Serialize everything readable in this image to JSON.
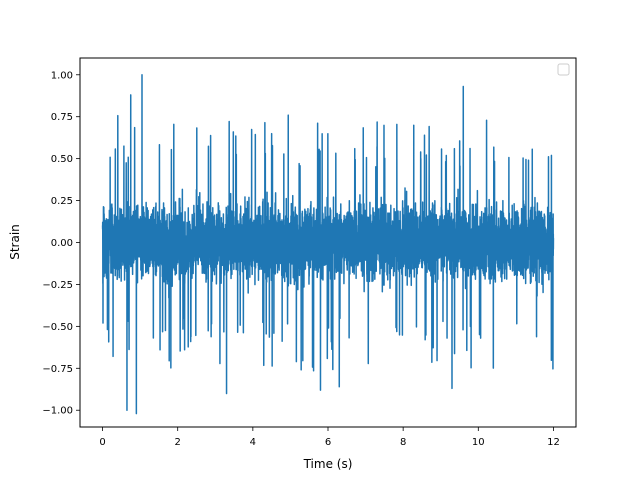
{
  "chart_data": {
    "type": "line",
    "title": "",
    "xlabel": "Time (s)",
    "ylabel": "Strain",
    "xlim": [
      -0.6,
      12.6
    ],
    "ylim": [
      -1.1,
      1.1
    ],
    "x_ticks": [
      0,
      2,
      4,
      6,
      8,
      10,
      12
    ],
    "x_tick_labels": [
      "0",
      "2",
      "4",
      "6",
      "8",
      "10",
      "12"
    ],
    "y_ticks": [
      -1.0,
      -0.75,
      -0.5,
      -0.25,
      0.0,
      0.25,
      0.5,
      0.75,
      1.0
    ],
    "y_tick_labels": [
      "−1.00",
      "−0.75",
      "−0.50",
      "−0.25",
      "0.00",
      "0.25",
      "0.50",
      "0.75",
      "1.00"
    ],
    "grid": false,
    "legend": {
      "placement": "upper right",
      "entries": []
    },
    "series": [
      {
        "color": "#1f77b4",
        "x_range": [
          0,
          12
        ],
        "core_band": [
          -0.45,
          0.45
        ],
        "extremes": {
          "max": {
            "x": 1.05,
            "y": 1.0
          },
          "min": {
            "x": 0.9,
            "y": -1.02
          }
        },
        "notable_spikes": [
          {
            "x": 0.65,
            "y": 0.89
          },
          {
            "x": 0.75,
            "y": 0.88
          },
          {
            "x": 0.65,
            "y": -1.0
          },
          {
            "x": 3.3,
            "y": -0.9
          },
          {
            "x": 5.8,
            "y": -0.88
          },
          {
            "x": 6.3,
            "y": -0.86
          },
          {
            "x": 9.6,
            "y": 0.93
          },
          {
            "x": 9.3,
            "y": -0.87
          }
        ]
      }
    ]
  }
}
